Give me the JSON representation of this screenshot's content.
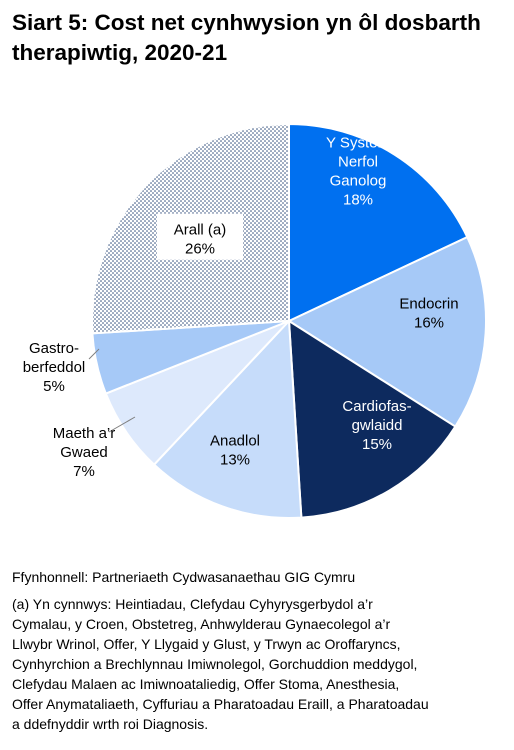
{
  "title": "Siart 5: Cost net cynhwysion yn ôl dosbarth therapiwtig, 2020-21",
  "chart_data": {
    "type": "pie",
    "title": "Siart 5: Cost net cynhwysion yn ôl dosbarth therapiwtig, 2020-21",
    "unit": "%",
    "start": "12 o'clock, clockwise",
    "slices": [
      {
        "label": [
          "Y System",
          "Nerfol",
          "Ganolog"
        ],
        "value": 18,
        "value_label": "18%",
        "color": "#0070f0",
        "label_color": "#ffffff",
        "placement": "inside"
      },
      {
        "label": [
          "Endocrin"
        ],
        "value": 16,
        "value_label": "16%",
        "color": "#a6c9f7",
        "label_color": "#000000",
        "placement": "inside"
      },
      {
        "label": [
          "Cardiofas-",
          "gwlaidd"
        ],
        "value": 15,
        "value_label": "15%",
        "color": "#0d2a5e",
        "label_color": "#ffffff",
        "placement": "inside"
      },
      {
        "label": [
          "Anadlol"
        ],
        "value": 13,
        "value_label": "13%",
        "color": "#c6dcfa",
        "label_color": "#000000",
        "placement": "inside"
      },
      {
        "label": [
          "Maeth a’r",
          "Gwaed"
        ],
        "value": 7,
        "value_label": "7%",
        "color": "#dde9fc",
        "label_color": "#000000",
        "placement": "outside"
      },
      {
        "label": [
          "Gastro-",
          "berfeddol"
        ],
        "value": 5,
        "value_label": "5%",
        "color": "#a6c9f7",
        "label_color": "#000000",
        "placement": "outside"
      },
      {
        "label": [
          "Arall (a)"
        ],
        "value": 26,
        "value_label": "26%",
        "color": "#ffffff",
        "pattern": "dotted",
        "label_color": "#000000",
        "placement": "inside"
      }
    ]
  },
  "source": "Ffynhonnell: Partneriaeth Cydwasanaethau GIG Cymru",
  "note_lines": [
    "(a) Yn cynnwys: Heintiadau, Clefydau Cyhyrysgerbydol a’r",
    "Cymalau, y Croen, Obstetreg, Anhwylderau Gynaecolegol a’r",
    "Llwybr Wrinol, Offer, Y Llygaid y Glust, y Trwyn ac Oroffaryncs,",
    "Cynhyrchion a Brechlynnau Imiwnolegol, Gorchuddion meddygol,",
    "Clefydau Malaen ac Imiwnoataliedig, Offer Stoma, Anesthesia,",
    "Offer Anymataliaeth, Cyffuriau a Pharatoadau Eraill, a Pharatoadau",
    "a ddefnyddir wrth roi Diagnosis."
  ]
}
